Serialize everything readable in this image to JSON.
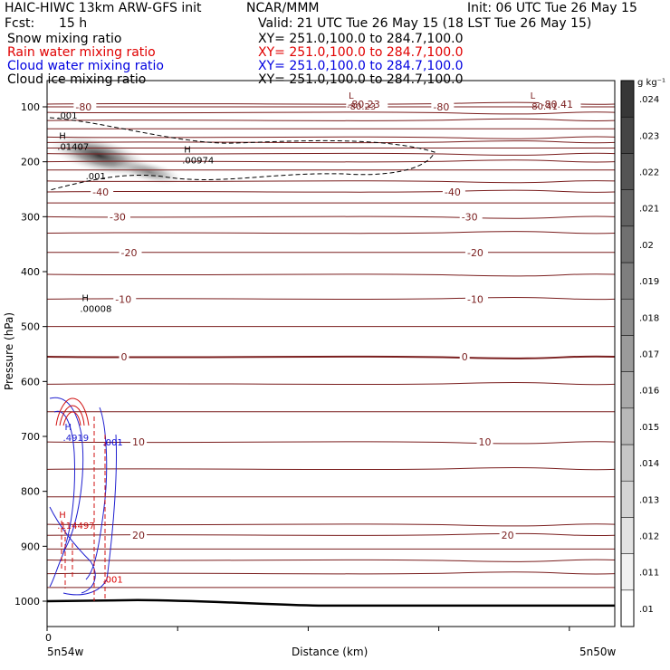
{
  "header": {
    "title": "HAIC-HIWC 13km ARW-GFS init",
    "center": "NCAR/MMM",
    "init": "Init: 06 UTC Tue 26 May 15",
    "fcst_label": "Fcst:",
    "fcst_value": "15 h",
    "valid": "Valid: 21 UTC Tue 26 May 15 (18 LST Tue 26 May 15)"
  },
  "fields": [
    {
      "name": "Snow mixing ratio",
      "xy": "XY= 251.0,100.0 to 284.7,100.0",
      "color": "#000000"
    },
    {
      "name": "Rain water mixing ratio",
      "xy": "XY= 251.0,100.0 to 284.7,100.0",
      "color": "#e00000"
    },
    {
      "name": "Cloud water mixing ratio",
      "xy": "XY= 251.0,100.0 to 284.7,100.0",
      "color": "#0000e0"
    },
    {
      "name": "Cloud ice mixing ratio",
      "xy": "XY= 251.0,100.0 to 284.7,100.0",
      "color": "#000000"
    }
  ],
  "chart_data": {
    "type": "contour cross-section",
    "xlabel": "Distance (km)",
    "ylabel": "Pressure (hPa)",
    "x_start_label": "5n54w",
    "x_end_label": "5n50w",
    "x_zero_label": "0",
    "ylim": [
      1000,
      90
    ],
    "yticks": [
      "100",
      "200",
      "300",
      "400",
      "500",
      "600",
      "700",
      "800",
      "900",
      "1000"
    ],
    "colorbar": {
      "unit": "g kg⁻¹",
      "levels": [
        ".01",
        ".011",
        ".012",
        ".013",
        ".014",
        ".015",
        ".016",
        ".017",
        ".018",
        ".019",
        ".02",
        ".021",
        ".022",
        ".023",
        ".024"
      ]
    },
    "temperature_contour_labels": [
      {
        "label": "-80",
        "p": 100,
        "x": 0.05
      },
      {
        "label": "-80",
        "p": 100,
        "x": 0.68
      },
      {
        "label": "-80.23",
        "p": 95,
        "x": 0.53
      },
      {
        "label": "-80.41",
        "p": 95,
        "x": 0.87
      },
      {
        "label": "-40",
        "p": 255,
        "x": 0.08
      },
      {
        "label": "-40",
        "p": 255,
        "x": 0.7
      },
      {
        "label": "-30",
        "p": 300,
        "x": 0.11
      },
      {
        "label": "-30",
        "p": 300,
        "x": 0.73
      },
      {
        "label": "-20",
        "p": 365,
        "x": 0.13
      },
      {
        "label": "-20",
        "p": 365,
        "x": 0.74
      },
      {
        "label": "-10",
        "p": 450,
        "x": 0.12
      },
      {
        "label": "-10",
        "p": 450,
        "x": 0.74
      },
      {
        "label": "0",
        "p": 555,
        "x": 0.13
      },
      {
        "label": "0",
        "p": 555,
        "x": 0.73
      },
      {
        "label": "10",
        "p": 710,
        "x": 0.15
      },
      {
        "label": "10",
        "p": 710,
        "x": 0.76
      },
      {
        "label": "20",
        "p": 880,
        "x": 0.15
      },
      {
        "label": "20",
        "p": 880,
        "x": 0.8
      }
    ],
    "extrema": [
      {
        "type": "L",
        "value": "-80.23",
        "x": 0.52,
        "p": 92
      },
      {
        "type": "L",
        "value": "-80.41",
        "x": 0.84,
        "p": 92
      },
      {
        "type": "H",
        "value": ".01407",
        "x": 0.01,
        "p": 165
      },
      {
        "type": "H",
        "value": ".00974",
        "x": 0.23,
        "p": 190
      },
      {
        "type": "H",
        "value": ".00008",
        "x": 0.05,
        "p": 460
      },
      {
        "type": "H",
        "value": ".4919",
        "x": 0.02,
        "p": 695
      },
      {
        "type": "H",
        "value": ".114497",
        "x": 0.01,
        "p": 855
      }
    ],
    "mixing_ratio_labels": [
      {
        "label": ".001",
        "p": 115,
        "x": 0.01,
        "color": "#000000"
      },
      {
        "label": ".001",
        "p": 225,
        "x": 0.06,
        "color": "#000000"
      },
      {
        "label": ".001",
        "p": 710,
        "x": 0.09,
        "color": "#0000e0"
      },
      {
        "label": ".001",
        "p": 960,
        "x": 0.09,
        "color": "#e00000"
      }
    ]
  }
}
